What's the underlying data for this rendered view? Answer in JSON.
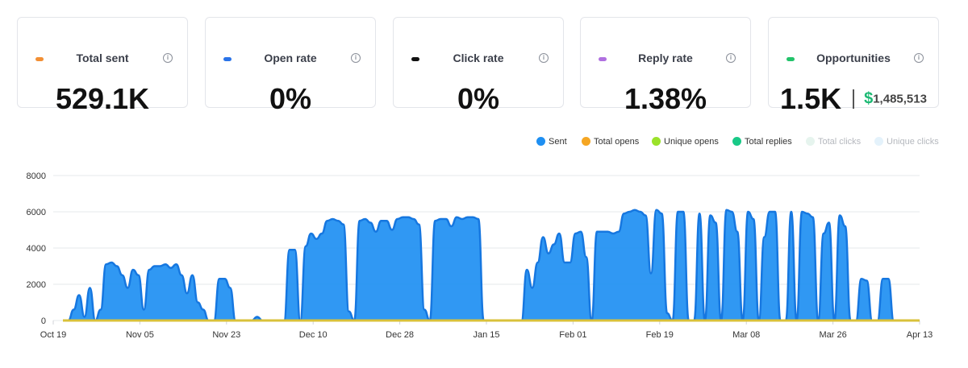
{
  "metrics": [
    {
      "label": "Total sent",
      "value": "529.1K",
      "color": "#f28f34",
      "icon": "info-icon"
    },
    {
      "label": "Open rate",
      "value": "0%",
      "color": "#2a73e8",
      "icon": "info-icon"
    },
    {
      "label": "Click rate",
      "value": "0%",
      "color": "#111111",
      "icon": "info-icon"
    },
    {
      "label": "Reply rate",
      "value": "1.38%",
      "color": "#b070e0",
      "icon": "info-icon"
    },
    {
      "label": "Opportunities",
      "value": "1.5K",
      "amount_symbol": "$",
      "amount": "1,485,513",
      "color": "#22c36a",
      "icon": "info-icon"
    }
  ],
  "legend": [
    {
      "name": "Sent",
      "color": "#1e8ff2",
      "active": true
    },
    {
      "name": "Total opens",
      "color": "#f5a623",
      "active": true
    },
    {
      "name": "Unique opens",
      "color": "#9be22a",
      "active": true
    },
    {
      "name": "Total replies",
      "color": "#19c987",
      "active": true
    },
    {
      "name": "Total clicks",
      "color": "#e6f4ee",
      "active": false
    },
    {
      "name": "Unique clicks",
      "color": "#e4f2fb",
      "active": false
    }
  ],
  "chart_data": {
    "type": "area",
    "x_ticks": [
      "Oct 19",
      "Nov 05",
      "Nov 23",
      "Dec 10",
      "Dec 28",
      "Jan 15",
      "Feb 01",
      "Feb 19",
      "Mar 08",
      "Mar 26",
      "Apr 13"
    ],
    "y_ticks": [
      0,
      2000,
      4000,
      6000,
      8000
    ],
    "ylim": [
      0,
      8000
    ],
    "grid": true,
    "legend_position": "top-right",
    "series": [
      {
        "name": "Sent",
        "color": "#1e8ff2",
        "values": [
          0,
          0,
          600,
          1400,
          200,
          1800,
          0,
          600,
          3100,
          3200,
          3000,
          2500,
          1800,
          2800,
          2500,
          600,
          2800,
          3000,
          3000,
          3100,
          2900,
          3100,
          2500,
          1500,
          2500,
          1000,
          600,
          0,
          0,
          2300,
          2300,
          1800,
          0,
          0,
          0,
          0,
          200,
          0,
          0,
          0,
          0,
          0,
          3900,
          3900,
          0,
          4100,
          4800,
          4500,
          4800,
          5500,
          5600,
          5500,
          5300,
          500,
          0,
          5500,
          5600,
          5400,
          4900,
          5500,
          5500,
          5000,
          5600,
          5700,
          5700,
          5600,
          5300,
          600,
          0,
          5500,
          5600,
          5600,
          5200,
          5700,
          5600,
          5700,
          5700,
          5600,
          0,
          0,
          0,
          0,
          0,
          0,
          0,
          0,
          2800,
          1800,
          3200,
          4600,
          3700,
          4200,
          4800,
          3200,
          3200,
          4800,
          4900,
          3500,
          0,
          4900,
          4900,
          4900,
          4800,
          4900,
          5900,
          6000,
          6100,
          6000,
          5800,
          2600,
          6100,
          5900,
          400,
          0,
          6000,
          6000,
          0,
          0,
          5900,
          0,
          5800,
          5400,
          0,
          6100,
          6000,
          4900,
          0,
          6000,
          5600,
          0,
          4600,
          6000,
          6000,
          0,
          0,
          6000,
          0,
          6000,
          5900,
          5700,
          0,
          4800,
          5400,
          0,
          5800,
          5200,
          0,
          0,
          2300,
          2200,
          0,
          0,
          2300,
          2300,
          0,
          0,
          0,
          0
        ],
        "note_values": "approximate daily sends read from area shape, Oct 19 to Apr 13"
      },
      {
        "name": "Total opens",
        "color": "#f5a623",
        "values_constant": 0
      },
      {
        "name": "Unique opens",
        "color": "#9be22a",
        "values_constant": 0
      },
      {
        "name": "Total replies",
        "color": "#19c987",
        "values_constant": 0
      }
    ]
  }
}
